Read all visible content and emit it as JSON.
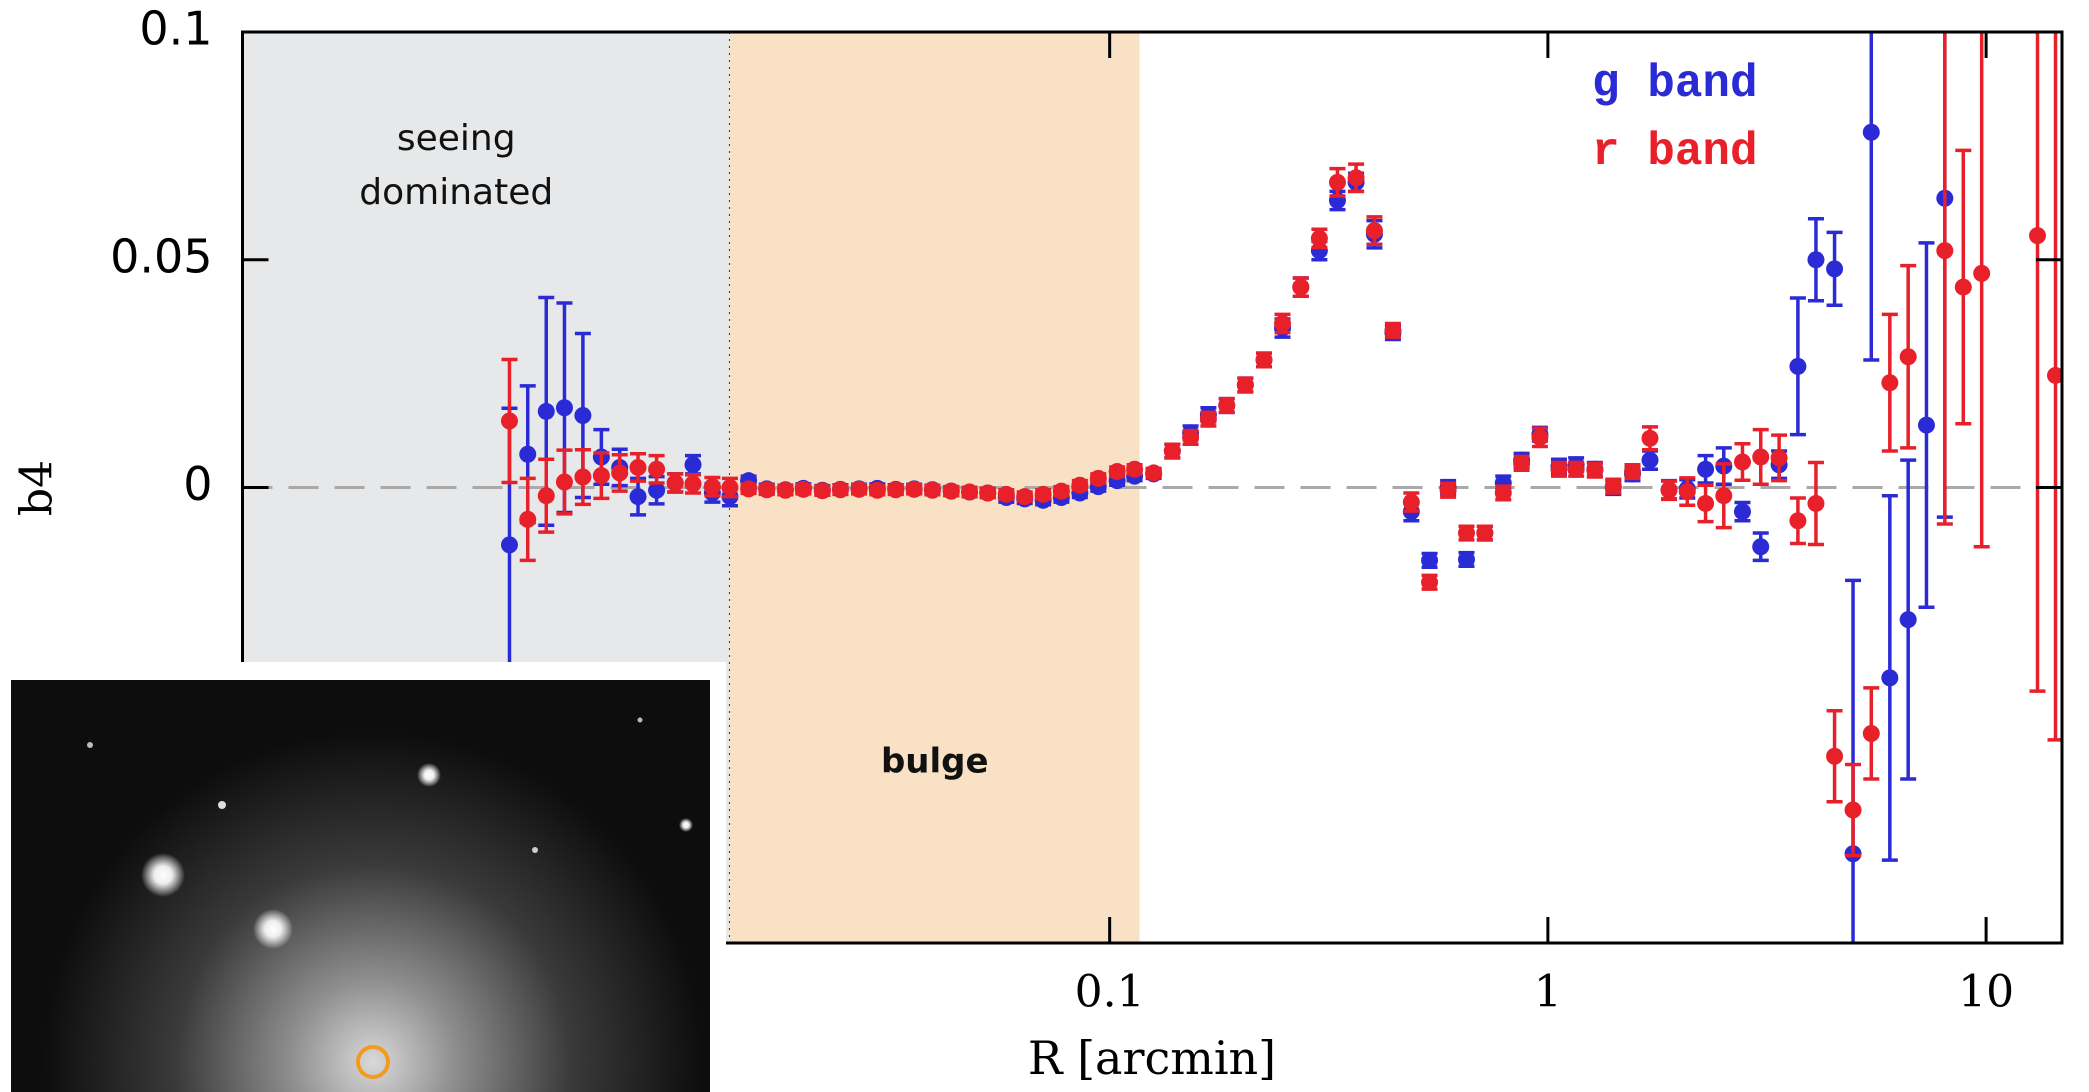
{
  "chart_data": {
    "type": "scatter",
    "x_label": "R [arcmin]",
    "y_label": "b4",
    "xscale": "log",
    "xlim": [
      0.00105,
      14.9
    ],
    "ylim": [
      -0.1,
      0.1
    ],
    "xticks": [
      0.1,
      1,
      10
    ],
    "yticks": [
      0,
      0.05,
      0.1
    ],
    "legend": "upper right",
    "hlines": [
      0
    ],
    "regions": [
      {
        "label": [
          "seeing",
          "dominated"
        ],
        "xrange": [
          0.00105,
          0.0136
        ],
        "color": "#e7e8e9"
      },
      {
        "label": [
          "bulge"
        ],
        "xrange": [
          0.0136,
          0.117
        ],
        "color": "#f8e1c4"
      }
    ],
    "x": [
      0.00427,
      0.0047,
      0.00518,
      0.0057,
      0.00628,
      0.00692,
      0.00762,
      0.00839,
      0.00925,
      0.0102,
      0.0112,
      0.0124,
      0.0136,
      0.015,
      0.0165,
      0.0182,
      0.02,
      0.0221,
      0.0243,
      0.0268,
      0.0295,
      0.0325,
      0.0358,
      0.0394,
      0.0435,
      0.0479,
      0.0527,
      0.0581,
      0.064,
      0.0705,
      0.0776,
      0.0855,
      0.0942,
      0.104,
      0.114,
      0.126,
      0.139,
      0.153,
      0.168,
      0.185,
      0.204,
      0.225,
      0.248,
      0.273,
      0.301,
      0.331,
      0.365,
      0.402,
      0.443,
      0.488,
      0.537,
      0.592,
      0.652,
      0.718,
      0.791,
      0.871,
      0.959,
      1.06,
      1.16,
      1.28,
      1.41,
      1.56,
      1.71,
      1.89,
      2.08,
      2.29,
      2.52,
      2.78,
      3.06,
      3.37,
      3.72,
      4.09,
      4.51,
      4.97,
      5.47,
      6.03,
      6.64,
      7.31,
      8.05,
      8.87,
      9.77,
      10.8,
      11.9,
      13.1,
      14.4
    ],
    "series": [
      {
        "name": "g band",
        "color": "#2b2bd6",
        "values": [
          -0.0126,
          0.0073,
          0.0167,
          0.0175,
          0.0158,
          0.0067,
          0.0044,
          -0.002,
          -0.0006,
          0.001,
          0.005,
          -0.0012,
          -0.002,
          0.0015,
          -0.0003,
          -0.0005,
          -0.0002,
          -0.0006,
          -0.0004,
          -0.0003,
          -0.0002,
          -0.0004,
          -0.0003,
          -0.0005,
          -0.0008,
          -0.001,
          -0.0012,
          -0.0022,
          -0.0025,
          -0.0028,
          -0.0022,
          -0.0012,
          0.0002,
          0.0015,
          0.0025,
          0.003,
          0.008,
          0.012,
          0.016,
          0.018,
          0.0225,
          0.028,
          0.035,
          0.044,
          0.052,
          0.063,
          0.067,
          0.0556,
          0.034,
          -0.0053,
          -0.016,
          0,
          -0.0158,
          -0.01,
          0.001,
          0.006,
          0.0117,
          0.0047,
          0.005,
          0.004,
          0,
          0.003,
          0.006,
          -0.0005,
          -0.0003,
          0.004,
          0.0047,
          -0.0053,
          -0.013,
          0.005,
          0.0266,
          0.05,
          0.048,
          -0.0804,
          0.078,
          -0.0418,
          -0.029,
          0.0137,
          0.0635,
          null,
          null,
          null,
          null,
          null,
          null
        ],
        "errors": [
          0.03,
          0.015,
          0.025,
          0.023,
          0.018,
          0.006,
          0.004,
          0.004,
          0.003,
          0.002,
          0.002,
          0.002,
          0.002,
          0.001,
          0.001,
          0.001,
          0.001,
          0.001,
          0.001,
          0.001,
          0.001,
          0.001,
          0.001,
          0.001,
          0.001,
          0.001,
          0.001,
          0.001,
          0.001,
          0.001,
          0.001,
          0.001,
          0.001,
          0.001,
          0.001,
          0.001,
          0.0015,
          0.0015,
          0.0015,
          0.0015,
          0.0015,
          0.0015,
          0.002,
          0.002,
          0.002,
          0.002,
          0.002,
          0.003,
          0.0015,
          0.002,
          0.0015,
          0.0015,
          0.0015,
          0.0015,
          0.0015,
          0.0015,
          0.0015,
          0.0015,
          0.0015,
          0.0015,
          0.0015,
          0.0015,
          0.002,
          0.002,
          0.002,
          0.003,
          0.004,
          0.002,
          0.003,
          0.003,
          0.015,
          0.009,
          0.008,
          0.06,
          0.05,
          0.04,
          0.035,
          0.04,
          0.07,
          null,
          null,
          null,
          null,
          null,
          null
        ]
      },
      {
        "name": "r band",
        "color": "#e8202a",
        "values": [
          0.0146,
          -0.007,
          -0.0018,
          0.0012,
          0.0023,
          0.0026,
          0.0032,
          0.0044,
          0.004,
          0.001,
          0.0008,
          0.0002,
          0,
          -0.0003,
          -0.0005,
          -0.0006,
          -0.0004,
          -0.0007,
          -0.0005,
          -0.0004,
          -0.0006,
          -0.0005,
          -0.0004,
          -0.0006,
          -0.0008,
          -0.001,
          -0.0012,
          -0.0015,
          -0.002,
          -0.0015,
          -0.0008,
          0.0005,
          0.002,
          0.0035,
          0.004,
          0.0032,
          0.008,
          0.011,
          0.015,
          0.018,
          0.0225,
          0.028,
          0.036,
          0.044,
          0.0547,
          0.067,
          0.068,
          0.0564,
          0.0345,
          -0.0032,
          -0.0208,
          -0.0006,
          -0.01,
          -0.01,
          -0.0012,
          0.0053,
          0.011,
          0.004,
          0.004,
          0.0038,
          0.0003,
          0.0035,
          0.0108,
          -0.0006,
          -0.0009,
          -0.0035,
          -0.0018,
          0.0056,
          0.0067,
          0.0065,
          -0.0073,
          -0.0035,
          -0.059,
          -0.0708,
          -0.054,
          0.023,
          0.0287,
          null,
          0.052,
          0.044,
          0.047,
          null,
          null,
          0.0553,
          0.0246
        ],
        "errors": [
          0.0135,
          0.009,
          0.008,
          0.007,
          0.006,
          0.005,
          0.004,
          0.003,
          0.003,
          0.002,
          0.002,
          0.002,
          0.002,
          0.001,
          0.001,
          0.001,
          0.001,
          0.001,
          0.001,
          0.001,
          0.001,
          0.001,
          0.001,
          0.001,
          0.001,
          0.001,
          0.001,
          0.001,
          0.001,
          0.001,
          0.001,
          0.001,
          0.001,
          0.001,
          0.001,
          0.001,
          0.0015,
          0.0015,
          0.0015,
          0.0015,
          0.0015,
          0.0015,
          0.002,
          0.002,
          0.002,
          0.003,
          0.003,
          0.003,
          0.0015,
          0.002,
          0.0015,
          0.0015,
          0.0015,
          0.0015,
          0.0015,
          0.0015,
          0.002,
          0.0015,
          0.0015,
          0.0015,
          0.0015,
          0.0015,
          0.0025,
          0.002,
          0.003,
          0.004,
          0.007,
          0.004,
          0.006,
          0.005,
          0.005,
          0.009,
          0.01,
          0.01,
          0.01,
          0.015,
          0.02,
          null,
          0.06,
          0.03,
          0.06,
          null,
          null,
          0.1,
          0.08
        ]
      }
    ]
  }
}
